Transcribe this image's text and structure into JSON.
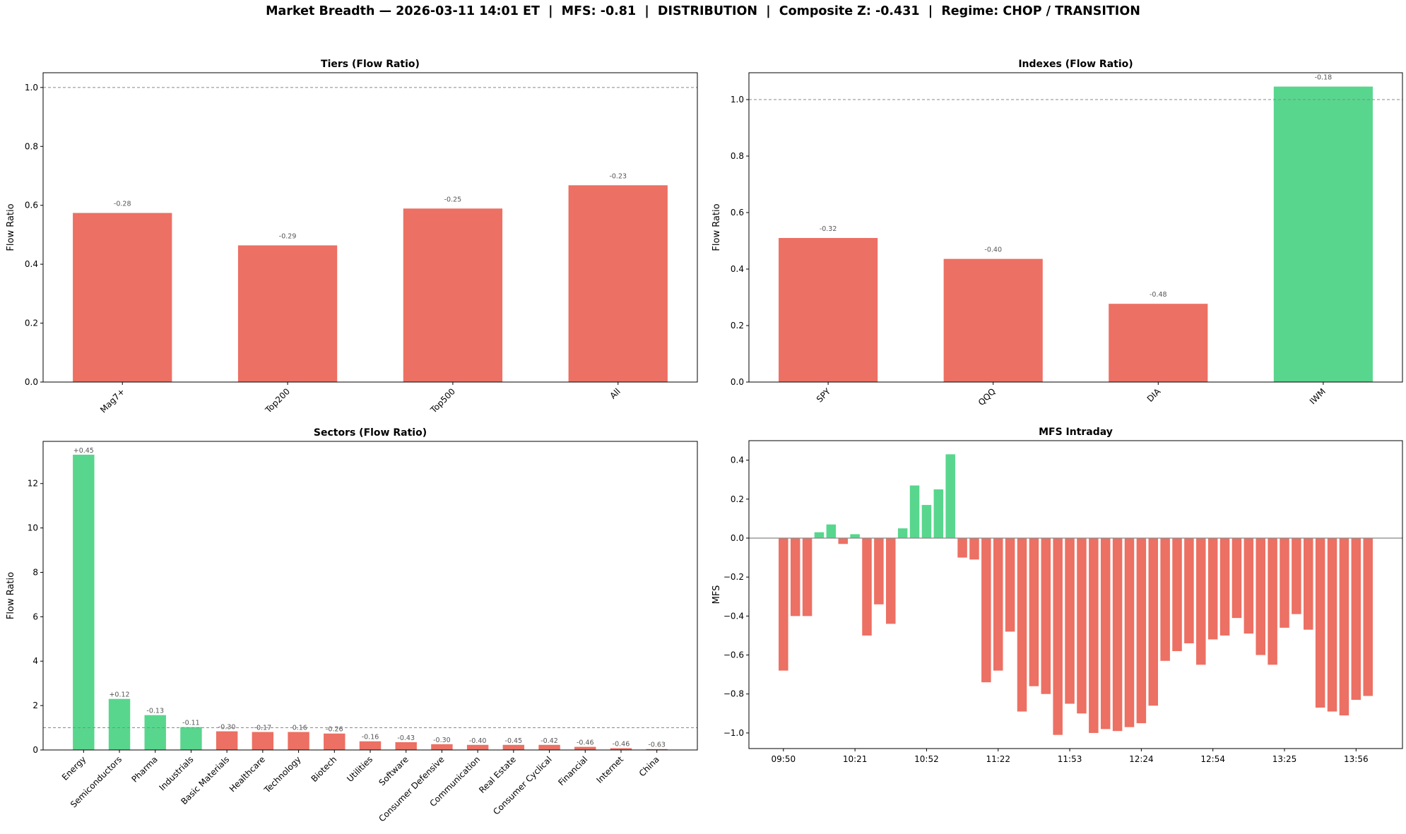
{
  "title": "Market Breadth — 2026-03-11 14:01 ET  |  MFS: -0.81  |  DISTRIBUTION  |  Composite Z: -0.431  |  Regime: CHOP / TRANSITION",
  "colors": {
    "positive": "#58D68D",
    "negative": "#EC7063",
    "reference_line": "#888888"
  },
  "chart_data": [
    {
      "type": "bar",
      "title": "Tiers (Flow Ratio)",
      "ylabel": "Flow Ratio",
      "categories": [
        "Mag7+",
        "Top200",
        "Top500",
        "All"
      ],
      "values": [
        0.574,
        0.464,
        0.589,
        0.668
      ],
      "value_labels": [
        "-0.28",
        "-0.29",
        "-0.25",
        "-0.23"
      ],
      "bar_colors": [
        "negative",
        "negative",
        "negative",
        "negative"
      ],
      "ylim": [
        0,
        1.05
      ],
      "yticks": [
        "0.0",
        "0.2",
        "0.4",
        "0.6",
        "0.8",
        "1.0"
      ],
      "reference_line": 1.0,
      "grid": false
    },
    {
      "type": "bar",
      "title": "Indexes (Flow Ratio)",
      "ylabel": "Flow Ratio",
      "categories": [
        "SPY",
        "QQQ",
        "DIA",
        "IWM"
      ],
      "values": [
        0.51,
        0.436,
        0.277,
        1.046
      ],
      "value_labels": [
        "-0.32",
        "-0.40",
        "-0.48",
        "-0.18"
      ],
      "bar_colors": [
        "negative",
        "negative",
        "negative",
        "positive"
      ],
      "ylim": [
        0,
        1.095
      ],
      "yticks": [
        "0.0",
        "0.2",
        "0.4",
        "0.6",
        "0.8",
        "1.0"
      ],
      "reference_line": 1.0,
      "grid": false
    },
    {
      "type": "bar",
      "title": "Sectors (Flow Ratio)",
      "ylabel": "Flow Ratio",
      "categories": [
        "Energy",
        "Semiconductors",
        "Pharma",
        "Industrials",
        "Basic Materials",
        "Healthcare",
        "Technology",
        "Biotech",
        "Utilities",
        "Software",
        "Consumer Defensive",
        "Communication",
        "Real Estate",
        "Consumer Cyclical",
        "Financial",
        "Internet",
        "China"
      ],
      "values": [
        13.3,
        2.3,
        1.57,
        1.03,
        0.84,
        0.81,
        0.81,
        0.74,
        0.39,
        0.35,
        0.26,
        0.23,
        0.23,
        0.23,
        0.14,
        0.08,
        0.04
      ],
      "value_labels": [
        "+0.45",
        "+0.12",
        "-0.13",
        "-0.11",
        "-0.30",
        "-0.17",
        "-0.16",
        "-0.26",
        "-0.16",
        "-0.43",
        "-0.30",
        "-0.40",
        "-0.45",
        "-0.42",
        "-0.46",
        "-0.46",
        "-0.63"
      ],
      "bar_colors": [
        "positive",
        "positive",
        "positive",
        "positive",
        "negative",
        "negative",
        "negative",
        "negative",
        "negative",
        "negative",
        "negative",
        "negative",
        "negative",
        "negative",
        "negative",
        "negative",
        "negative"
      ],
      "ylim": [
        0,
        13.9
      ],
      "yticks": [
        "0",
        "2",
        "4",
        "6",
        "8",
        "10",
        "12"
      ],
      "reference_line": 1.0,
      "grid": false
    },
    {
      "type": "bar",
      "title": "MFS Intraday",
      "ylabel": "MFS",
      "values": [
        -0.68,
        -0.4,
        -0.4,
        0.03,
        0.07,
        -0.03,
        0.02,
        -0.5,
        -0.34,
        -0.44,
        0.05,
        0.27,
        0.17,
        0.25,
        0.43,
        -0.1,
        -0.11,
        -0.74,
        -0.68,
        -0.48,
        -0.89,
        -0.76,
        -0.8,
        -1.01,
        -0.85,
        -0.9,
        -1.0,
        -0.98,
        -0.99,
        -0.97,
        -0.95,
        -0.86,
        -0.63,
        -0.58,
        -0.54,
        -0.65,
        -0.52,
        -0.5,
        -0.41,
        -0.49,
        -0.6,
        -0.65,
        -0.46,
        -0.39,
        -0.47,
        -0.87,
        -0.89,
        -0.91,
        -0.83,
        -0.81
      ],
      "xticklabels": [
        "09:50",
        "10:21",
        "10:52",
        "11:22",
        "11:53",
        "12:24",
        "12:54",
        "13:25",
        "13:56"
      ],
      "ylim": [
        -1.08,
        0.5
      ],
      "yticks": [
        "−1.0",
        "−0.8",
        "−0.6",
        "−0.4",
        "−0.2",
        "0.0",
        "0.2",
        "0.4"
      ],
      "reference_line": 0.0,
      "grid": false
    }
  ]
}
